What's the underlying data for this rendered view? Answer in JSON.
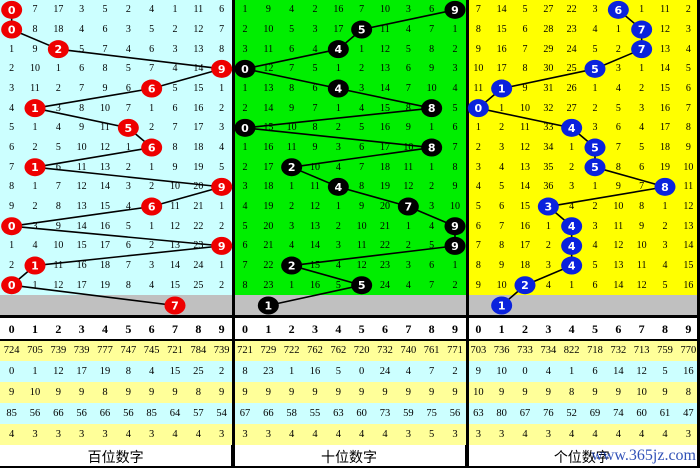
{
  "chart_data": {
    "type": "table",
    "columns": [
      "0",
      "1",
      "2",
      "3",
      "4",
      "5",
      "6",
      "7",
      "8",
      "9"
    ],
    "panels": [
      {
        "label": "百位数字",
        "bg": "#ccffff",
        "marker_color": "#ee0000",
        "rows": [
          [
            0,
            7,
            17,
            3,
            5,
            2,
            4,
            1,
            11,
            6
          ],
          [
            0,
            8,
            18,
            4,
            6,
            3,
            5,
            2,
            12,
            7
          ],
          [
            1,
            9,
            2,
            5,
            7,
            4,
            6,
            3,
            13,
            8
          ],
          [
            2,
            10,
            1,
            6,
            8,
            5,
            7,
            4,
            14,
            9
          ],
          [
            3,
            11,
            2,
            7,
            9,
            6,
            6,
            5,
            15,
            1
          ],
          [
            4,
            1,
            3,
            8,
            10,
            7,
            1,
            6,
            16,
            2
          ],
          [
            5,
            1,
            4,
            9,
            11,
            5,
            2,
            7,
            17,
            3
          ],
          [
            6,
            2,
            5,
            10,
            12,
            1,
            6,
            8,
            18,
            4
          ],
          [
            7,
            1,
            6,
            11,
            13,
            2,
            1,
            9,
            19,
            5
          ],
          [
            8,
            1,
            7,
            12,
            14,
            3,
            2,
            10,
            20,
            9
          ],
          [
            9,
            2,
            8,
            13,
            15,
            4,
            6,
            11,
            21,
            1
          ],
          [
            0,
            3,
            9,
            14,
            16,
            5,
            1,
            12,
            22,
            2
          ],
          [
            1,
            4,
            10,
            15,
            17,
            6,
            2,
            13,
            23,
            9
          ],
          [
            2,
            1,
            11,
            16,
            18,
            7,
            3,
            14,
            24,
            1
          ],
          [
            0,
            1,
            12,
            17,
            19,
            8,
            4,
            15,
            25,
            2
          ]
        ],
        "hits": [
          0,
          0,
          2,
          9,
          6,
          1,
          5,
          6,
          1,
          9,
          6,
          0,
          9,
          1,
          0
        ],
        "prediction": 7,
        "stats": [
          [
            724,
            705,
            739,
            739,
            777,
            747,
            745,
            721,
            784,
            739
          ],
          [
            0,
            1,
            12,
            17,
            19,
            8,
            4,
            15,
            25,
            2
          ],
          [
            9,
            10,
            9,
            9,
            8,
            9,
            9,
            9,
            8,
            9
          ],
          [
            85,
            56,
            66,
            56,
            66,
            56,
            85,
            64,
            57,
            54
          ],
          [
            4,
            3,
            3,
            3,
            3,
            4,
            3,
            4,
            4,
            3
          ]
        ]
      },
      {
        "label": "十位数字",
        "bg": "#00ee00",
        "marker_color": "#000000",
        "rows": [
          [
            1,
            9,
            4,
            2,
            16,
            7,
            10,
            3,
            6,
            9
          ],
          [
            2,
            10,
            5,
            3,
            17,
            5,
            11,
            4,
            7,
            1
          ],
          [
            3,
            11,
            6,
            4,
            4,
            1,
            12,
            5,
            8,
            2
          ],
          [
            0,
            12,
            7,
            5,
            1,
            2,
            13,
            6,
            9,
            3
          ],
          [
            1,
            13,
            8,
            6,
            4,
            3,
            14,
            7,
            10,
            4
          ],
          [
            2,
            14,
            9,
            7,
            1,
            4,
            15,
            8,
            8,
            5
          ],
          [
            0,
            15,
            10,
            8,
            2,
            5,
            16,
            9,
            1,
            6
          ],
          [
            1,
            16,
            11,
            9,
            3,
            6,
            17,
            10,
            8,
            7
          ],
          [
            2,
            17,
            2,
            10,
            4,
            7,
            18,
            11,
            1,
            8
          ],
          [
            3,
            18,
            1,
            11,
            4,
            8,
            19,
            12,
            2,
            9
          ],
          [
            4,
            19,
            2,
            12,
            1,
            9,
            20,
            7,
            3,
            10
          ],
          [
            5,
            20,
            3,
            13,
            2,
            10,
            21,
            1,
            4,
            9
          ],
          [
            6,
            21,
            4,
            14,
            3,
            11,
            22,
            2,
            5,
            9
          ],
          [
            7,
            22,
            2,
            15,
            4,
            12,
            23,
            3,
            6,
            1
          ],
          [
            8,
            23,
            1,
            16,
            5,
            5,
            24,
            4,
            7,
            2
          ]
        ],
        "hits": [
          9,
          5,
          4,
          0,
          4,
          8,
          0,
          8,
          2,
          4,
          7,
          9,
          9,
          2,
          5
        ],
        "prediction": 1,
        "stats": [
          [
            721,
            729,
            722,
            762,
            762,
            720,
            732,
            740,
            761,
            771
          ],
          [
            8,
            23,
            1,
            16,
            5,
            0,
            24,
            4,
            7,
            2
          ],
          [
            9,
            9,
            9,
            9,
            9,
            9,
            9,
            9,
            9,
            9
          ],
          [
            67,
            66,
            58,
            55,
            63,
            60,
            73,
            59,
            75,
            56
          ],
          [
            3,
            3,
            4,
            4,
            4,
            4,
            4,
            3,
            5,
            3
          ]
        ]
      },
      {
        "label": "个位数字",
        "bg": "#ffff00",
        "marker_color": "#0a22dd",
        "rows": [
          [
            7,
            14,
            5,
            27,
            22,
            3,
            6,
            1,
            11,
            2
          ],
          [
            8,
            15,
            6,
            28,
            23,
            4,
            1,
            7,
            12,
            3
          ],
          [
            9,
            16,
            7,
            29,
            24,
            5,
            2,
            7,
            13,
            4
          ],
          [
            10,
            17,
            8,
            30,
            25,
            5,
            3,
            1,
            14,
            5
          ],
          [
            11,
            1,
            9,
            31,
            26,
            1,
            4,
            2,
            15,
            6
          ],
          [
            0,
            1,
            10,
            32,
            27,
            2,
            5,
            3,
            16,
            7
          ],
          [
            1,
            2,
            11,
            33,
            4,
            3,
            6,
            4,
            17,
            8
          ],
          [
            2,
            3,
            12,
            34,
            1,
            5,
            7,
            5,
            18,
            9
          ],
          [
            3,
            4,
            13,
            35,
            2,
            5,
            8,
            6,
            19,
            10
          ],
          [
            4,
            5,
            14,
            36,
            3,
            1,
            9,
            7,
            8,
            11
          ],
          [
            5,
            6,
            15,
            3,
            4,
            2,
            10,
            8,
            1,
            12
          ],
          [
            6,
            7,
            16,
            1,
            4,
            3,
            11,
            9,
            2,
            13
          ],
          [
            7,
            8,
            17,
            2,
            4,
            4,
            12,
            10,
            3,
            14
          ],
          [
            8,
            9,
            18,
            3,
            4,
            5,
            13,
            11,
            4,
            15
          ],
          [
            9,
            10,
            2,
            4,
            1,
            6,
            14,
            12,
            5,
            16
          ]
        ],
        "hits": [
          6,
          7,
          7,
          5,
          1,
          0,
          4,
          5,
          5,
          8,
          3,
          4,
          4,
          4,
          2
        ],
        "prediction": 1,
        "stats": [
          [
            703,
            736,
            733,
            734,
            822,
            718,
            732,
            713,
            759,
            770
          ],
          [
            9,
            10,
            0,
            4,
            1,
            6,
            14,
            12,
            5,
            16
          ],
          [
            10,
            9,
            9,
            9,
            8,
            9,
            9,
            10,
            9,
            8
          ],
          [
            63,
            80,
            67,
            76,
            52,
            69,
            74,
            60,
            61,
            47
          ],
          [
            3,
            3,
            4,
            3,
            4,
            4,
            4,
            4,
            4,
            3
          ]
        ]
      }
    ],
    "stat_row_colors": [
      "#ffff99",
      "#ccffff",
      "#ffff99",
      "#ccffff",
      "#ffff99"
    ],
    "prediction_row_color": "#c0c0c0"
  },
  "watermark": "www.365jz.com"
}
